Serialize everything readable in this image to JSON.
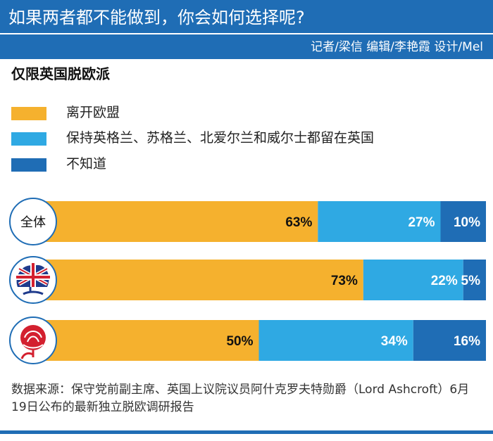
{
  "header": {
    "title": "如果两者都不能做到，你会如何选择呢?",
    "credits": "记者/梁信   编辑/李艳霞  设计/Mel"
  },
  "subtitle": "仅限英国脱欧派",
  "legend": [
    {
      "label": "离开欧盟",
      "color": "#f5b12e"
    },
    {
      "label": "保持英格兰、苏格兰、北爱尔兰和威尔士都留在英国",
      "color": "#2fa9e3"
    },
    {
      "label": "不知道",
      "color": "#1f6db5"
    }
  ],
  "colors": {
    "accent": "#1f6db5",
    "leave": "#f5b12e",
    "stay": "#2fa9e3",
    "dontknow": "#1f6db5"
  },
  "chart_data": {
    "type": "bar",
    "orientation": "horizontal-stacked-100",
    "categories": [
      "全体",
      "保守党",
      "工党"
    ],
    "category_icons": [
      "",
      "conservative-party-logo-icon",
      "labour-party-rose-icon"
    ],
    "series": [
      {
        "name": "离开欧盟",
        "values": [
          63,
          73,
          50
        ],
        "labels": [
          "63%",
          "73%",
          "50%"
        ]
      },
      {
        "name": "保持英格兰、苏格兰、北爱尔兰和威尔士都留在英国",
        "values": [
          27,
          22,
          34
        ],
        "labels": [
          "27%",
          "22%",
          "34%"
        ]
      },
      {
        "name": "不知道",
        "values": [
          10,
          5,
          16
        ],
        "labels": [
          "10%",
          "5%",
          "16%"
        ]
      }
    ],
    "xlim": [
      0,
      100
    ],
    "legend_position": "top-left",
    "grid": false
  },
  "source": "数据来源：保守党前副主席、英国上议院议员阿什克罗夫特勋爵（Lord Ashcroft）6月19日公布的最新独立脱欧调研报告"
}
